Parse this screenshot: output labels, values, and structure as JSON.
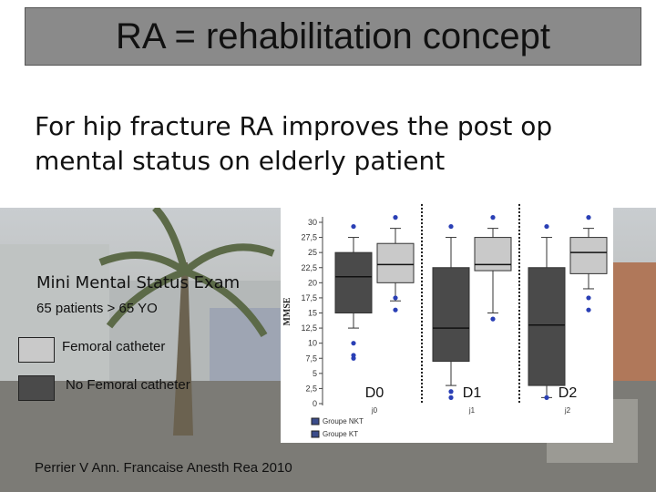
{
  "slide": {
    "title": "RA = rehabilitation concept",
    "subtitle": "For hip fracture RA improves the post op mental status on elderly patient",
    "chart_heading": "Mini Mental Status Exam",
    "chart_subheading": "65 patients > 65 YO",
    "legend_light": "Femoral catheter",
    "legend_dark": "No Femoral catheter",
    "reference": "Perrier V Ann. Francaise Anesth Rea 2010"
  },
  "colors": {
    "light_box": "#c9c9c9",
    "dark_box": "#4a4a4a",
    "points": "#2a3fb5",
    "title_bg": "#8a8a8a"
  },
  "chart_data": {
    "type": "box",
    "ylabel": "MMSE",
    "ylim": [
      0,
      30
    ],
    "yticks": [
      0,
      2.5,
      5,
      7.5,
      10,
      12.5,
      15,
      17.5,
      20,
      22.5,
      25,
      27.5,
      30
    ],
    "categories": [
      "j0",
      "j1",
      "j2"
    ],
    "category_overlay_labels": [
      "D0",
      "D1",
      "D2"
    ],
    "legend": [
      "Groupe NKT",
      "Groupe KT"
    ],
    "series": [
      {
        "name": "Groupe NKT",
        "boxes": [
          {
            "min": 12.5,
            "q1": 15,
            "median": 21,
            "q3": 25,
            "max": 27.5,
            "outliers": [
              7.5,
              8,
              10
            ]
          },
          {
            "min": 3,
            "q1": 7,
            "median": 12.5,
            "q3": 22.5,
            "max": 27.5,
            "outliers": [
              1,
              2
            ]
          },
          {
            "min": 1,
            "q1": 3,
            "median": 13,
            "q3": 22.5,
            "max": 27.5,
            "outliers": [
              1
            ]
          }
        ]
      },
      {
        "name": "Groupe KT",
        "boxes": [
          {
            "min": 17,
            "q1": 20,
            "median": 23,
            "q3": 26.5,
            "max": 29,
            "outliers": [
              15.5,
              17.5
            ]
          },
          {
            "min": 15,
            "q1": 22,
            "median": 23,
            "q3": 27.5,
            "max": 29,
            "outliers": [
              14
            ]
          },
          {
            "min": 19,
            "q1": 21.5,
            "median": 25,
            "q3": 27.5,
            "max": 29,
            "outliers": [
              15.5,
              17.5
            ]
          }
        ]
      }
    ]
  }
}
